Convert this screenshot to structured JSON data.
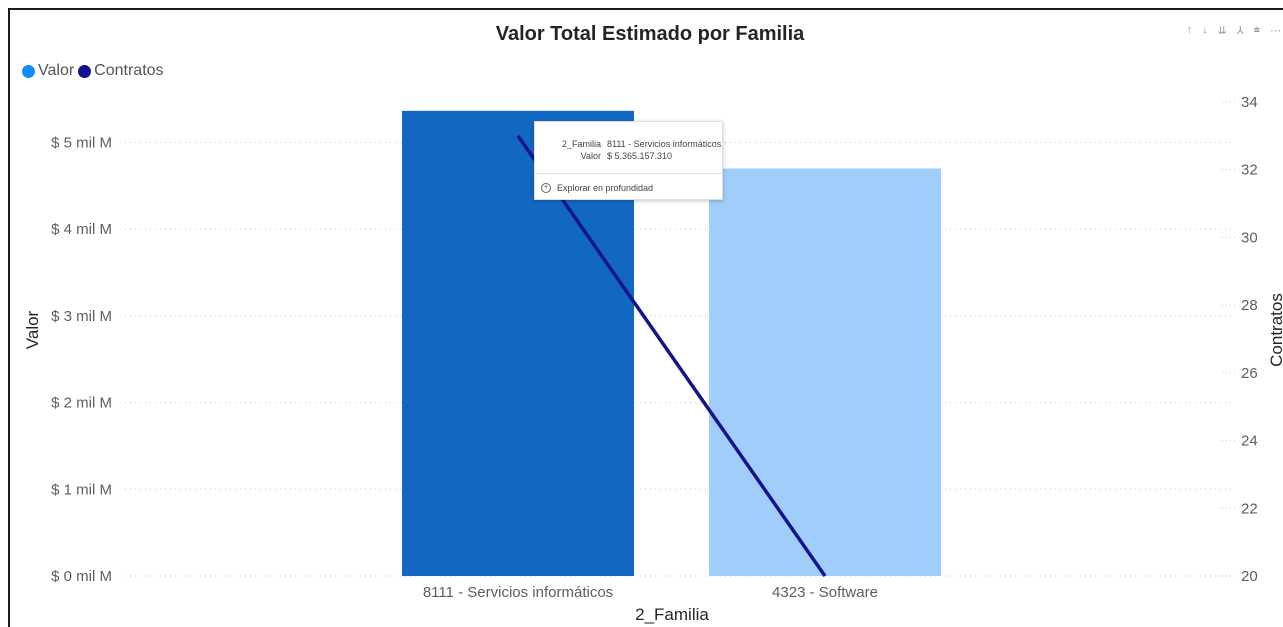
{
  "toolbar": {
    "icons": [
      "arrow-up-icon",
      "arrow-down-icon",
      "double-arrow-down-icon",
      "hierarchy-icon",
      "filter-icon",
      "more-icon"
    ],
    "glyphs": [
      "↑",
      "↓",
      "⇊",
      "⅄",
      "⩧",
      "⋯"
    ]
  },
  "colors": {
    "bar_selected": "#1268c0",
    "bar_other": "#a0cdfa",
    "line": "#13138f",
    "legend_valor": "#118dff",
    "grid": "#c8c6c4"
  },
  "chart_data": {
    "type": "bar",
    "title": "Valor Total Estimado por Familia",
    "xlabel": "2_Familia",
    "ylabel": "Valor",
    "y2label": "Contratos",
    "categories": [
      "8111 - Servicios informáticos",
      "4323 - Software"
    ],
    "series": [
      {
        "name": "Valor",
        "type": "bar",
        "values": [
          5365157310,
          4700000000
        ]
      },
      {
        "name": "Contratos",
        "type": "line",
        "axis": "right",
        "values": [
          33,
          20
        ]
      }
    ],
    "ylim": [
      0,
      5500000000
    ],
    "y_ticks": [
      0,
      1000000000,
      2000000000,
      3000000000,
      4000000000,
      5000000000
    ],
    "y_tick_labels": [
      "$ 0 mil M",
      "$ 1 mil M",
      "$ 2 mil M",
      "$ 3 mil M",
      "$ 4 mil M",
      "$ 5 mil M"
    ],
    "y2lim": [
      20,
      35
    ],
    "y2_ticks": [
      20,
      22,
      24,
      26,
      28,
      30,
      32,
      34
    ],
    "y2_tick_labels": [
      "20",
      "22",
      "24",
      "26",
      "28",
      "30",
      "32",
      "34"
    ],
    "grid": true,
    "legend_position": "top-left"
  },
  "tooltip": {
    "key1": "2_Familia",
    "val1": "8111 - Servicios informáticos",
    "key2": "Valor",
    "val2": "$ 5.365.157.310",
    "action": "Explorar en profundidad"
  }
}
